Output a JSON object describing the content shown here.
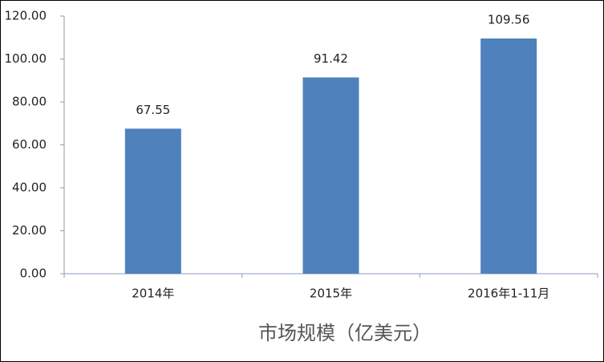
{
  "chart_data": {
    "type": "bar",
    "xlabel": "市场规模（亿美元）",
    "categories": [
      "2014年",
      "2015年",
      "2016年1-11月"
    ],
    "values": [
      67.55,
      91.42,
      109.56
    ],
    "color": "#4f81bd",
    "ylim": [
      0,
      120
    ],
    "yticks": [
      {
        "value": 0,
        "label": "0.00"
      },
      {
        "value": 20,
        "label": "20.00"
      },
      {
        "value": 40,
        "label": "40.00"
      },
      {
        "value": 60,
        "label": "60.00"
      },
      {
        "value": 80,
        "label": "80.00"
      },
      {
        "value": 100,
        "label": "100.00"
      },
      {
        "value": 120,
        "label": "120.00"
      }
    ],
    "grid": false
  }
}
